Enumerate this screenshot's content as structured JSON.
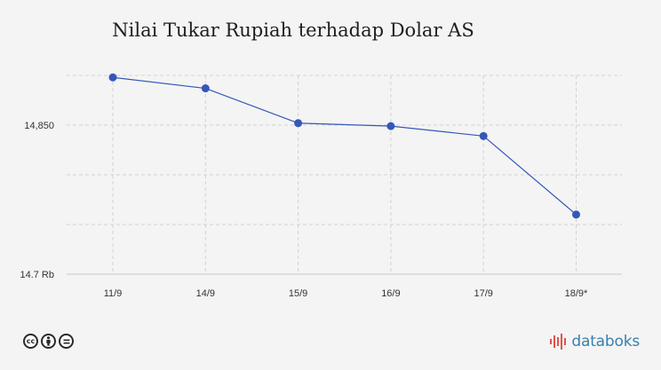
{
  "title": "Nilai Tukar Rupiah terhadap Dolar AS",
  "chart_data": {
    "type": "line",
    "title": "Nilai Tukar Rupiah terhadap Dolar AS",
    "categories": [
      "11/9",
      "14/9",
      "15/9",
      "16/9",
      "17/9",
      "18/9*"
    ],
    "series": [
      {
        "values": [
          14898,
          14887,
          14852,
          14849,
          14839,
          14760
        ]
      }
    ],
    "y_ticks": [
      {
        "value": 14700,
        "label": "14.7 Rb"
      },
      {
        "value": 14750,
        "label": ""
      },
      {
        "value": 14800,
        "label": ""
      },
      {
        "value": 14850,
        "label": "14,850"
      },
      {
        "value": 14900,
        "label": ""
      }
    ],
    "ylim": [
      14700,
      14900
    ],
    "grid": true,
    "line_color": "#3557b8",
    "marker_color": "#3557b8"
  },
  "footer": {
    "license_icons": [
      "cc-icon",
      "by-icon",
      "nd-icon"
    ],
    "brand": "databoks",
    "brand_color": "#3a7fae"
  }
}
